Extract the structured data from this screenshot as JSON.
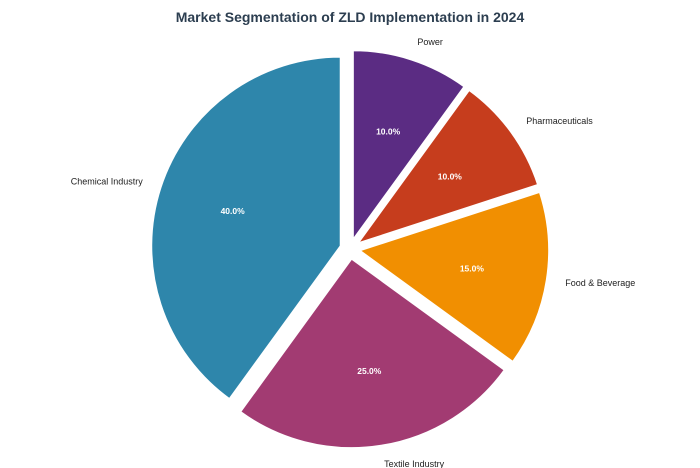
{
  "chart_data": {
    "type": "pie",
    "title": "Market Segmentation of ZLD Implementation in 2024",
    "categories": [
      "Power",
      "Pharmaceuticals",
      "Food & Beverage",
      "Textile Industry",
      "Chemical Industry"
    ],
    "values": [
      10,
      10,
      15,
      25,
      40
    ],
    "value_labels": [
      "10.0%",
      "10.0%",
      "15.0%",
      "25.0%",
      "40.0%"
    ],
    "colors": [
      "#5b2c83",
      "#c63d1d",
      "#f18f01",
      "#a23b72",
      "#2e86ab"
    ],
    "exploded": true,
    "start": "top",
    "direction": "clockwise",
    "legend": "none"
  }
}
